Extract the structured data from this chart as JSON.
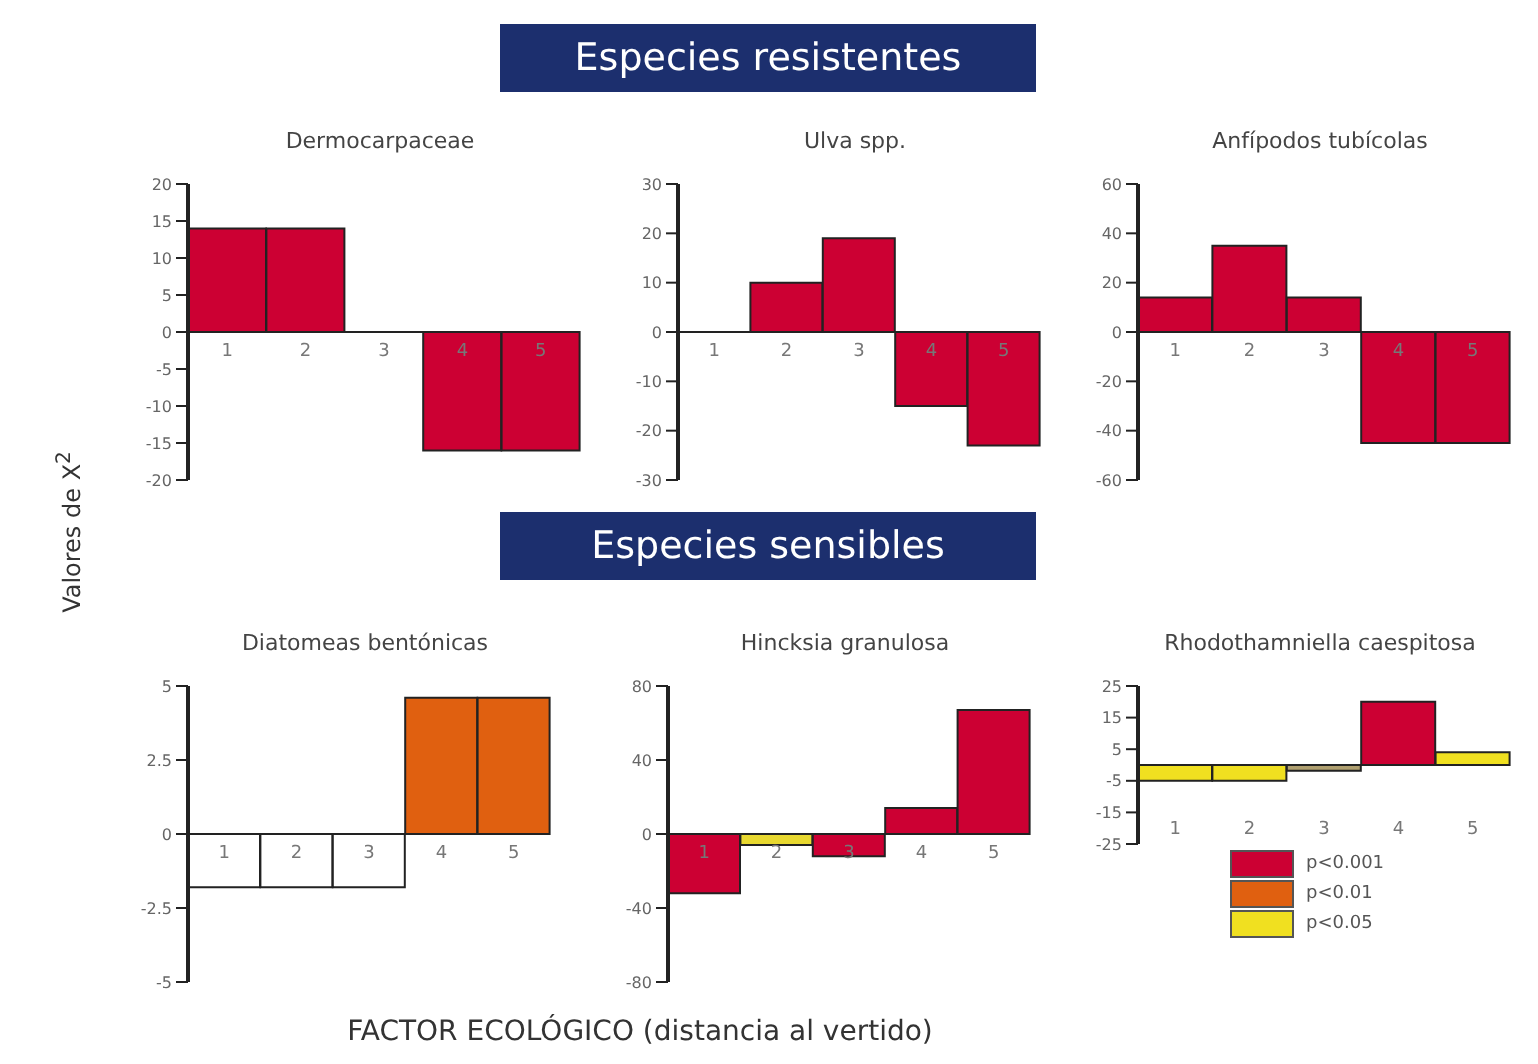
{
  "chart_data": [
    {
      "type": "bar",
      "title": "Dermocarpaceae",
      "annotations": [
        "Especies resistentes"
      ],
      "ylabel": "Valores de X$^{2}$",
      "categories": [
        "1",
        "2",
        "3",
        "4",
        "5"
      ],
      "values": [
        14,
        14,
        0,
        -16,
        -16
      ],
      "colors": [
        "#cc0033",
        "#cc0033",
        "#cc0033",
        "#cc0033",
        "#cc0033"
      ],
      "ylim": [
        -20,
        20
      ],
      "yticks": [
        -20,
        -15,
        -10,
        -5,
        0,
        5,
        10,
        15,
        20
      ]
    },
    {
      "type": "bar",
      "title": "Ulva spp.",
      "categories": [
        "1",
        "2",
        "3",
        "4",
        "5"
      ],
      "values": [
        0,
        10,
        19,
        -15,
        -23
      ],
      "colors": [
        "#cc0033",
        "#cc0033",
        "#cc0033",
        "#cc0033",
        "#cc0033"
      ],
      "ylim": [
        -30,
        30
      ],
      "yticks": [
        -30,
        -20,
        -10,
        0,
        10,
        20,
        30
      ]
    },
    {
      "type": "bar",
      "title": "Anfípodos tubícolas",
      "categories": [
        "1",
        "2",
        "3",
        "4",
        "5"
      ],
      "values": [
        14,
        35,
        14,
        -45,
        -45
      ],
      "colors": [
        "#cc0033",
        "#cc0033",
        "#cc0033",
        "#cc0033",
        "#cc0033"
      ],
      "ylim": [
        -60,
        60
      ],
      "yticks": [
        -60,
        -40,
        -20,
        0,
        20,
        40,
        60
      ]
    },
    {
      "type": "bar",
      "title": "Diatomeas bentónicas",
      "annotations": [
        "Especies sensibles"
      ],
      "xlabel": "FACTOR ECOLÓGICO (distancia al vertido)",
      "categories": [
        "1",
        "2",
        "3",
        "4",
        "5"
      ],
      "values": [
        -1.8,
        -1.8,
        -1.8,
        4.6,
        4.6
      ],
      "colors": [
        "#ffffff",
        "#ffffff",
        "#ffffff",
        "#e06010",
        "#e06010"
      ],
      "ylim": [
        -5,
        5
      ],
      "yticks": [
        -5,
        -2.5,
        0,
        2.5,
        5
      ]
    },
    {
      "type": "bar",
      "title": "Hincksia granulosa",
      "categories": [
        "1",
        "2",
        "3",
        "4",
        "5"
      ],
      "values": [
        -32,
        -6,
        -12,
        14,
        67
      ],
      "colors": [
        "#cc0033",
        "#e8d830",
        "#cc0033",
        "#cc0033",
        "#cc0033"
      ],
      "ylim": [
        -80,
        80
      ],
      "yticks": [
        -80,
        -40,
        0,
        40,
        80
      ]
    },
    {
      "type": "bar",
      "title": "Rhodothamniella caespitosa",
      "categories": [
        "1",
        "2",
        "3",
        "4",
        "5"
      ],
      "stacked": true,
      "legend": "bottom",
      "series": [
        {
          "name": "p<0.001",
          "color": "#cc0033",
          "values": [
            null,
            null,
            null,
            20,
            null
          ]
        },
        {
          "name": "p<0.01",
          "color": "#e06010",
          "values": [
            null,
            null,
            null,
            null,
            null
          ]
        },
        {
          "name": "p<0.05",
          "color": "#f0e020",
          "values": [
            -5,
            -5,
            null,
            null,
            4
          ]
        },
        {
          "color": "#b0a070",
          "values": [
            null,
            null,
            -1.8,
            null,
            null
          ]
        }
      ],
      "ylim": [
        -25,
        25
      ],
      "yticks": [
        -25,
        -15,
        -5,
        5,
        15,
        25
      ]
    }
  ]
}
